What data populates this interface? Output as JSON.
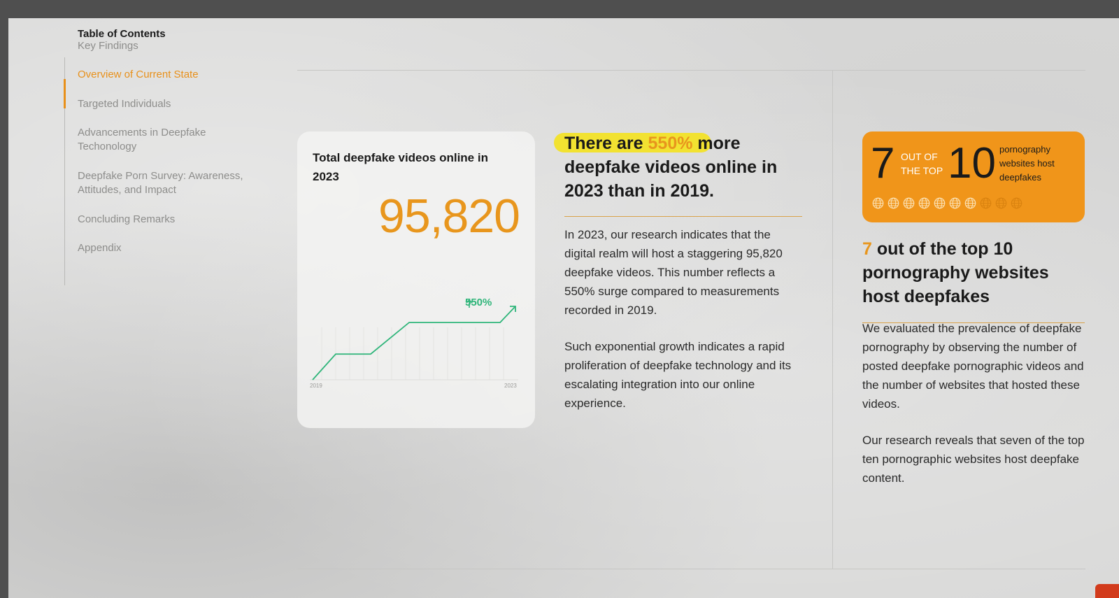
{
  "toc": {
    "title": "Table of Contents",
    "items": [
      {
        "label": "Key Findings",
        "active": false
      },
      {
        "label": "Overview of Current State",
        "active": true
      },
      {
        "label": "Targeted Individuals",
        "active": false
      },
      {
        "label": "Advancements in Deepfake Techonology",
        "active": false
      },
      {
        "label": "Deepfake Porn Survey: Awareness, Attitudes, and Impact",
        "active": false
      },
      {
        "label": "Concluding Remarks",
        "active": false
      },
      {
        "label": "Appendix",
        "active": false
      }
    ]
  },
  "card": {
    "title": "Total deepfake videos online in 2023",
    "number": "95,820",
    "growth_label": "550%",
    "x_start_label": "2019",
    "x_end_label": "2023"
  },
  "chart_data": {
    "type": "line",
    "x_labels": [
      "2019",
      "2023"
    ],
    "annotation": "550%",
    "relative_values": [
      0.0,
      0.35,
      0.35,
      0.78,
      0.78,
      1.0
    ]
  },
  "section1": {
    "headline_pre": "There are ",
    "headline_accent": "550%",
    "headline_post": " more deepfake videos online in 2023 than in 2019.",
    "para1": "In 2023, our research indicates that the digital realm will host a staggering 95,820 deepfake videos. This number reflects a 550% surge compared to measurements recorded in 2019.",
    "para2": "Such exponential growth indicates a rapid proliferation of deepfake technology and its escalating integration into our online experience."
  },
  "badge": {
    "big_left": "7",
    "small_line1": "OUT OF",
    "small_line2": "THE TOP",
    "big_right": "10",
    "desc": "pornography websites host deepfakes",
    "total_globes": 10,
    "highlighted_globes": 7,
    "colors": {
      "background": "#f0951a",
      "globe_light": "#fbe3b8",
      "globe_dim": "#d9820f"
    }
  },
  "section2": {
    "subhead_accent": "7",
    "subhead_rest": " out of the top 10 pornography websites host deepfakes",
    "para1": "We evaluated the prevalence of deepfake pornography by observing the number of posted deepfake pornographic videos and the number of websites that hosted these videos.",
    "para2": "Our research reveals that seven of the top ten pornographic websites host deepfake content."
  },
  "colors": {
    "accent": "#e8961d",
    "chart_line": "#2fb57a"
  }
}
